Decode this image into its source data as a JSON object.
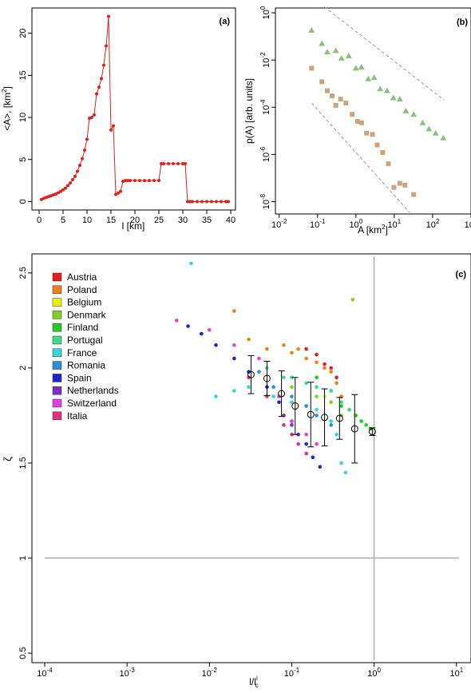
{
  "colors": {
    "red_series": "#e0201b",
    "triangles": "#8fbf80",
    "squares": "#c9a47e",
    "dashed": "#9a9a9a",
    "reference_lines": "#a0a0a0",
    "legend": [
      "#e02020",
      "#f07f1a",
      "#eeee10",
      "#7fd12a",
      "#22cc22",
      "#3ddc84",
      "#38d6dc",
      "#2c8cd8",
      "#1f24c8",
      "#7d2bc4",
      "#e040e0",
      "#e0307f"
    ]
  },
  "chart_data": [
    {
      "id": "a",
      "type": "line",
      "panel_label": "(a)",
      "xlabel": "l [km]",
      "ylabel": "<A>, [km",
      "ylabel_sup": "2",
      "ylabel_end": "]",
      "xlim": [
        -1.5,
        41
      ],
      "ylim": [
        -1,
        23
      ],
      "xticks": [
        "0",
        "5",
        "10",
        "15",
        "20",
        "25",
        "30",
        "35",
        "40"
      ],
      "xtick_values": [
        0,
        5,
        10,
        15,
        20,
        25,
        30,
        35,
        40
      ],
      "yticks": [
        "0",
        "5",
        "10",
        "15",
        "20"
      ],
      "ytick_values": [
        0,
        5,
        10,
        15,
        20
      ],
      "x": [
        0.5,
        1.0,
        1.5,
        2.0,
        2.5,
        3.0,
        3.5,
        4.0,
        4.5,
        5.0,
        5.5,
        6.0,
        6.5,
        7.0,
        7.5,
        8.0,
        8.5,
        9.0,
        9.5,
        10.0,
        10.5,
        11.0,
        11.5,
        12.0,
        12.5,
        13.0,
        13.5,
        14.0,
        14.5,
        15.0,
        15.5,
        16.0,
        16.5,
        17.0,
        17.5,
        18.0,
        18.5,
        19.0,
        20.0,
        21.0,
        22.0,
        23.0,
        24.0,
        25.0,
        25.5,
        26.0,
        27.0,
        28.0,
        29.0,
        30.0,
        30.5,
        31.0,
        31.5,
        32.0,
        33.0,
        34.0,
        35.0,
        36.0,
        37.0,
        38.0,
        39.0,
        39.5
      ],
      "y": [
        0.25,
        0.4,
        0.5,
        0.6,
        0.7,
        0.8,
        0.9,
        1.05,
        1.2,
        1.4,
        1.6,
        1.9,
        2.2,
        2.6,
        3.0,
        3.6,
        4.3,
        5.1,
        6.1,
        7.4,
        9.9,
        10.0,
        10.3,
        12.8,
        13.6,
        14.6,
        16.2,
        18.5,
        22.0,
        8.5,
        9.0,
        0.85,
        1.0,
        1.2,
        2.4,
        2.5,
        2.5,
        2.5,
        2.5,
        2.5,
        2.5,
        2.5,
        2.5,
        2.5,
        4.5,
        4.5,
        4.5,
        4.5,
        4.5,
        4.5,
        4.5,
        0.0,
        0.0,
        0.0,
        0.0,
        0.0,
        0.0,
        0.0,
        0.0,
        0.0,
        0.0,
        0.0
      ]
    },
    {
      "id": "b",
      "type": "scatter",
      "panel_label": "(b)",
      "xlabel": "A [km",
      "xlabel_sup": "2",
      "xlabel_end": "]",
      "ylabel": "p(A) [arb. units]",
      "xscale": "log",
      "yscale": "log",
      "xlim": [
        0.008,
        1000
      ],
      "ylim": [
        3e-09,
        1.6
      ],
      "xticks": [
        "10",
        "10",
        "10",
        "10",
        "10",
        "10"
      ],
      "xtick_exponents": [
        "-2",
        "-1",
        "0",
        "1",
        "2",
        "3"
      ],
      "xtick_values": [
        0.01,
        0.1,
        1,
        10,
        100,
        1000
      ],
      "yticks": [
        "10",
        "10",
        "10",
        "10",
        "10"
      ],
      "ytick_exponents": [
        "0",
        "-2",
        "-4",
        "-6",
        "-8"
      ],
      "ytick_values": [
        1,
        0.01,
        0.0001,
        1e-06,
        1e-08
      ],
      "series": [
        {
          "marker": "triangle",
          "x": [
            0.07,
            0.13,
            0.18,
            0.3,
            0.42,
            0.65,
            1.0,
            1.4,
            2.1,
            3.0,
            4.3,
            6.5,
            9.5,
            14,
            20,
            32,
            55,
            80,
            120,
            190
          ],
          "y": [
            0.18,
            0.05,
            0.022,
            0.025,
            0.012,
            0.015,
            0.0045,
            0.005,
            0.0016,
            0.0018,
            0.0006,
            0.0005,
            0.00025,
            0.00022,
            7e-05,
            5e-05,
            2.2e-05,
            1.2e-05,
            8e-06,
            5e-06
          ]
        },
        {
          "marker": "square",
          "x": [
            0.07,
            0.13,
            0.18,
            0.24,
            0.3,
            0.4,
            0.55,
            0.8,
            1.1,
            1.4,
            1.9,
            2.7,
            3.6,
            5.0,
            7.0,
            9.8,
            14,
            19,
            32
          ],
          "y": [
            0.0045,
            0.0012,
            0.0005,
            0.0003,
            0.00012,
            0.00022,
            0.00015,
            5e-05,
            2.5e-05,
            2.2e-05,
            8e-06,
            7e-06,
            2.5e-06,
            1.2e-06,
            4e-07,
            4e-08,
            6e-08,
            5e-08,
            2e-08
          ]
        }
      ],
      "guides": [
        {
          "x": [
            0.15,
            200
          ],
          "y": [
            1.8,
            0.0002
          ]
        },
        {
          "x": [
            0.07,
            25
          ],
          "y": [
            0.00015,
            3.5e-09
          ]
        }
      ]
    },
    {
      "id": "c",
      "type": "scatter",
      "panel_label": "(c)",
      "xlabel": "l/l",
      "xlabel_sub": "c",
      "xlabel_sup": "i",
      "ylabel": "ζ",
      "xscale": "log",
      "xlim": [
        7e-05,
        15
      ],
      "ylim": [
        0.45,
        2.6
      ],
      "xticks": [
        "10",
        "10",
        "10",
        "10",
        "10",
        "10"
      ],
      "xtick_exponents": [
        "-4",
        "-3",
        "-2",
        "-1",
        "0",
        "1"
      ],
      "xtick_values": [
        0.0001,
        0.001,
        0.01,
        0.1,
        1,
        10
      ],
      "yticks": [
        "0.5",
        "1",
        "1.5",
        "2",
        "2.5"
      ],
      "ytick_values": [
        0.5,
        1,
        1.5,
        2,
        2.5
      ],
      "reference_lines": {
        "x": 1,
        "y": 1
      },
      "legend": [
        "Austria",
        "Poland",
        "Belgium",
        "Denmark",
        "Finland",
        "Portugal",
        "France",
        "Romania",
        "Spain",
        "Netherlands",
        "Switzerland",
        "Italia"
      ],
      "series": [
        {
          "name": "Austria",
          "x": [
            0.15,
            0.2,
            0.25,
            0.3,
            0.35,
            0.4
          ],
          "y": [
            2.1,
            2.07,
            2.02,
            2.0,
            1.95,
            1.85
          ]
        },
        {
          "name": "Poland",
          "x": [
            0.02,
            0.03,
            0.05,
            0.08,
            0.1,
            0.12,
            0.15,
            0.2,
            0.25,
            0.3,
            0.35,
            0.4
          ],
          "y": [
            2.3,
            2.15,
            2.1,
            2.12,
            2.08,
            2.1,
            2.05,
            2.03,
            2.0,
            1.98,
            1.92,
            1.85
          ]
        },
        {
          "name": "Belgium",
          "x": [
            0.25,
            0.3
          ],
          "y": [
            1.85,
            1.82
          ]
        },
        {
          "name": "Denmark",
          "x": [
            0.1,
            0.2,
            0.3,
            0.4,
            0.55
          ],
          "y": [
            1.9,
            1.85,
            1.82,
            1.75,
            2.36
          ]
        },
        {
          "name": "Finland",
          "x": [
            0.2,
            0.3,
            0.4,
            0.5,
            0.6,
            0.7,
            0.8,
            0.9
          ],
          "y": [
            1.95,
            1.88,
            1.8,
            1.78,
            1.75,
            1.72,
            1.7,
            1.68
          ]
        },
        {
          "name": "Portugal",
          "x": [
            0.05,
            0.08,
            0.1,
            0.15,
            0.2,
            0.3,
            0.4,
            0.5
          ],
          "y": [
            2.0,
            1.95,
            1.95,
            1.92,
            1.9,
            1.88,
            1.82,
            1.78
          ]
        },
        {
          "name": "France",
          "x": [
            0.006,
            0.012,
            0.02,
            0.03,
            0.06,
            0.1,
            0.15,
            0.2,
            0.3,
            0.35,
            0.4,
            0.45
          ],
          "y": [
            2.55,
            1.85,
            1.88,
            1.9,
            1.85,
            1.82,
            1.8,
            1.78,
            1.72,
            1.65,
            1.5,
            1.45
          ]
        },
        {
          "name": "Romania",
          "x": [
            0.04,
            0.06,
            0.1,
            0.15,
            0.2,
            0.3
          ],
          "y": [
            1.98,
            1.9,
            1.85,
            1.8,
            1.75,
            1.7
          ]
        },
        {
          "name": "Spain",
          "x": [
            0.0055,
            0.008,
            0.012,
            0.02,
            0.03,
            0.05,
            0.07,
            0.1,
            0.12,
            0.15,
            0.18,
            0.22
          ],
          "y": [
            2.22,
            2.18,
            2.12,
            2.05,
            1.98,
            1.9,
            1.82,
            1.72,
            1.65,
            1.6,
            1.53,
            1.48
          ]
        },
        {
          "name": "Netherlands",
          "x": [
            0.08,
            0.1,
            0.12
          ],
          "y": [
            1.75,
            1.7,
            1.65
          ]
        },
        {
          "name": "Switzerland",
          "x": [
            0.004,
            0.01,
            0.02,
            0.04,
            0.07,
            0.1,
            0.15,
            0.2
          ],
          "y": [
            2.25,
            2.2,
            2.12,
            2.05,
            1.85,
            1.72,
            1.65,
            1.6
          ]
        },
        {
          "name": "Italia",
          "x": [
            0.03,
            0.05,
            0.08,
            0.1,
            0.12,
            0.15
          ],
          "y": [
            1.95,
            1.85,
            1.7,
            1.65,
            1.6,
            1.55
          ]
        }
      ],
      "binned_averages": {
        "x": [
          0.032,
          0.05,
          0.075,
          0.11,
          0.17,
          0.25,
          0.38,
          0.58,
          0.95
        ],
        "y": [
          1.965,
          1.945,
          1.865,
          1.8,
          1.755,
          1.74,
          1.735,
          1.68,
          1.665
        ],
        "err": [
          0.1,
          0.09,
          0.12,
          0.15,
          0.17,
          0.15,
          0.11,
          0.18,
          0.02
        ]
      }
    }
  ]
}
